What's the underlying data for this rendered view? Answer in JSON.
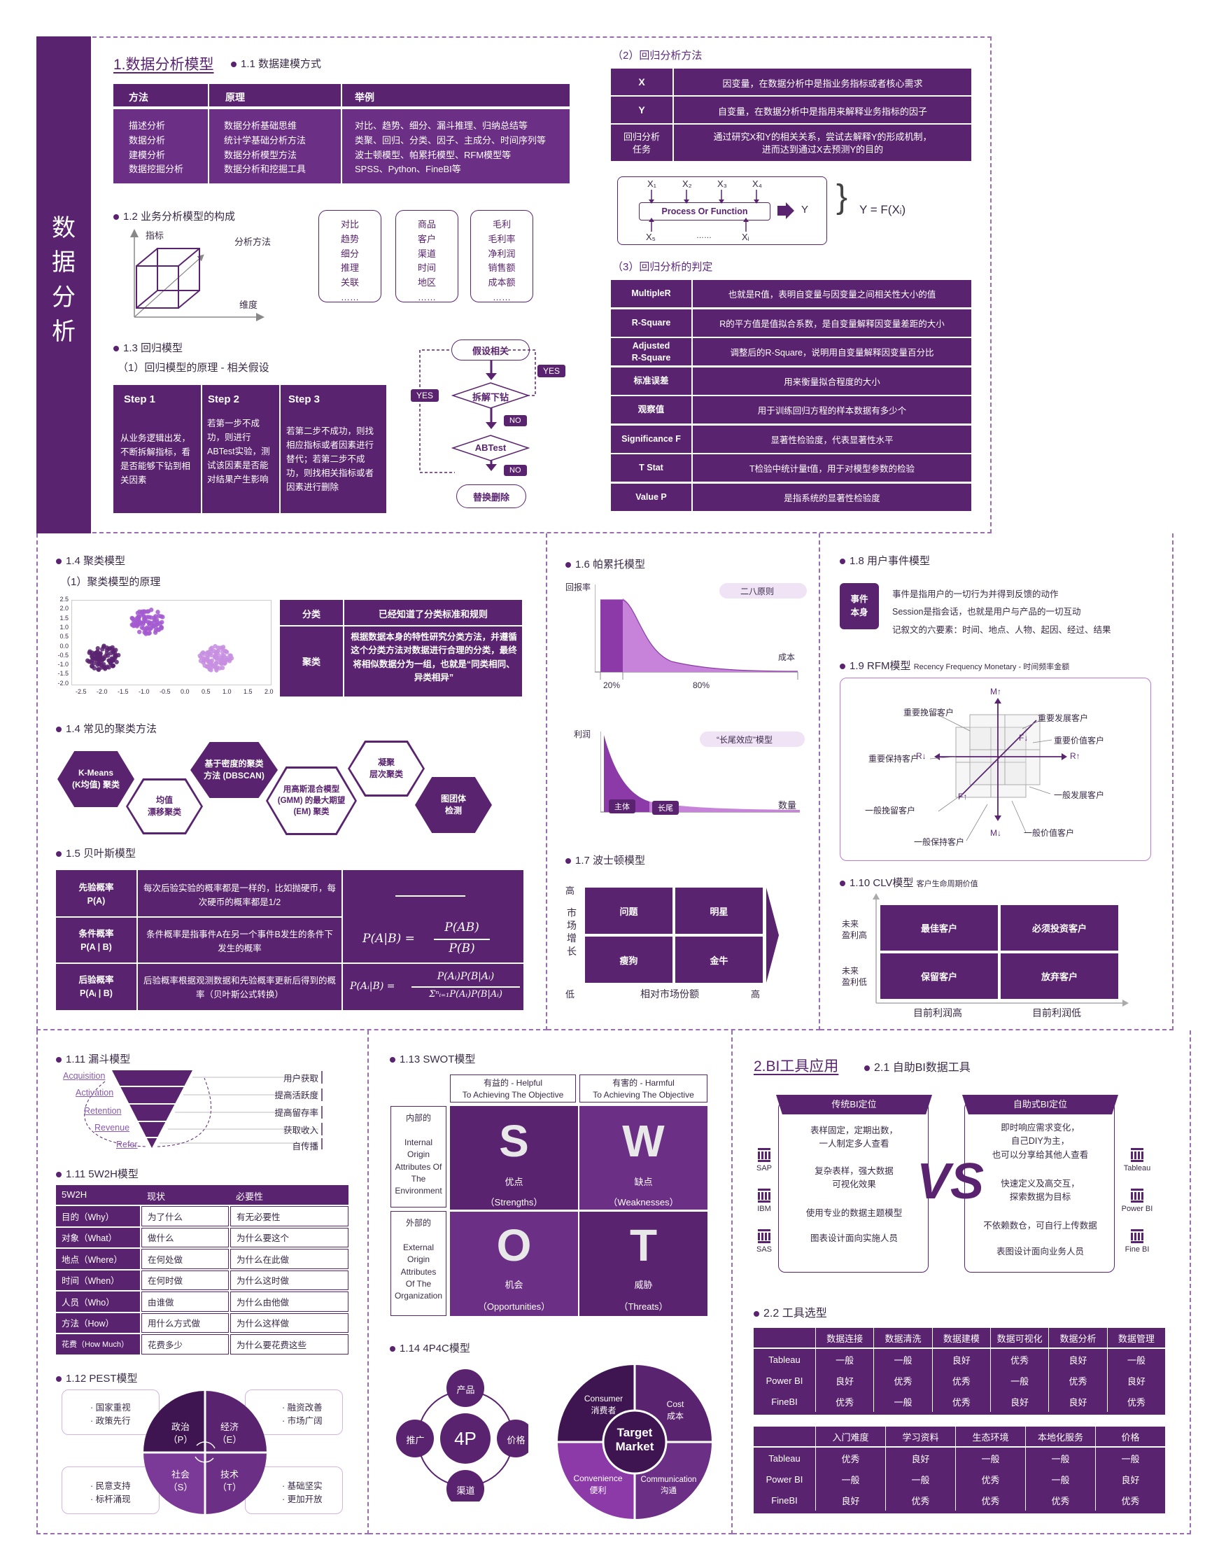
{
  "side_title": "数\n据\n分\n析",
  "s1": {
    "title": "1.数据分析模型",
    "sub": "1.1 数据建模方式",
    "table": {
      "headers": [
        "方法",
        "原理",
        "举例"
      ],
      "col1": [
        "描述分析",
        "数据分析",
        "建模分析",
        "数据挖掘分析"
      ],
      "col2": [
        "数据分析基础思维",
        "统计学基础分析方法",
        "数据分析模型方法",
        "数据分析和挖掘工具"
      ],
      "col3": [
        "对比、趋势、细分、漏斗推理、归纳总结等",
        "类聚、回归、分类、因子、主成分、时间序列等",
        "波士顿模型、帕累托模型、RFM模型等",
        "SPSS、Python、FineBI等"
      ]
    }
  },
  "s12": {
    "title": "1.2 业务分析模型的构成",
    "axis_y": "指标",
    "axis_x": "维度",
    "axis_z": "分析方法",
    "boxes": [
      [
        "对比",
        "趋势",
        "细分",
        "推理",
        "关联",
        "……"
      ],
      [
        "商品",
        "客户",
        "渠道",
        "时间",
        "地区",
        "……"
      ],
      [
        "毛利",
        "毛利率",
        "净利润",
        "销售额",
        "成本额",
        "……"
      ]
    ]
  },
  "s13": {
    "title": "1.3 回归模型",
    "sub": "（1）回归模型的原理 - 相关假设",
    "steps": [
      {
        "h": "Step 1",
        "b": "从业务逻辑出发，不断拆解指标，看是否能够下钻到相关因素"
      },
      {
        "h": "Step 2",
        "b": "若第一步不成功，则进行ABTest实验，测试该因素是否能对结果产生影响"
      },
      {
        "h": "Step 3",
        "b": "若第二步不成功，则找相应指标或者因素进行替代；若第二步不成功，则找相关指标或者因素进行删除"
      }
    ],
    "flow": {
      "n1": "假设相关",
      "n2": "拆解下钻",
      "n3": "ABTest",
      "n4": "替换删除",
      "yes": "YES",
      "no": "NO"
    }
  },
  "s2": {
    "title": "（2）回归分析方法",
    "rows": [
      {
        "k": "X",
        "v": "因变量，在数据分析中是指业务指标或者核心需求"
      },
      {
        "k": "Y",
        "v": "自变量，在数据分析中是指用来解释业务指标的因子"
      },
      {
        "k": "回归分析\n任务",
        "v": "通过研究X和Y的相关关系，尝试去解释Y的形成机制，\n进而达到通过X去预测Y的目的"
      }
    ],
    "diag": {
      "x1": "X₁",
      "x2": "X₂",
      "x3": "X₃",
      "x4": "X₄",
      "x5": "X₅",
      "xi": "Xᵢ",
      "dots": "……",
      "box": "Process Or Function",
      "y": "Y",
      "eq": "Y = F(Xᵢ)"
    }
  },
  "s3": {
    "title": "（3）回归分析的判定",
    "rows": [
      {
        "k": "MultipleR",
        "v": "也就是R值，表明自变量与因变量之间相关性大小的值"
      },
      {
        "k": "R-Square",
        "v": "R的平方值是值拟合系数，是自变量解释因变量差距的大小"
      },
      {
        "k": "Adjusted\nR-Square",
        "v": "调整后的R-Square，说明用自变量解释因变量百分比"
      },
      {
        "k": "标准误差",
        "v": "用来衡量拟合程度的大小"
      },
      {
        "k": "观察值",
        "v": "用于训练回归方程的样本数据有多少个"
      },
      {
        "k": "Significance F",
        "v": "显著性检验度，代表显著性水平"
      },
      {
        "k": "T Stat",
        "v": "T检验中统计量t值，用于对模型参数的检验"
      },
      {
        "k": "Value P",
        "v": "是指系统的显著性检验度"
      }
    ]
  },
  "s14": {
    "title": "1.4 聚类模型",
    "sub": "（1）聚类模型的原理",
    "yt": [
      "2.5",
      "2.0",
      "1.5",
      "1.0",
      "0.5",
      "0.0",
      "-0.5",
      "-1.0",
      "-1.5",
      "-2.0"
    ],
    "xt": [
      "-2.5",
      "-2.0",
      "-1.5",
      "-1.0",
      "-0.5",
      "0.0",
      "0.5",
      "1.0",
      "1.5",
      "2.0"
    ],
    "rows": [
      {
        "k": "分类",
        "v": "已经知道了分类标准和规则"
      },
      {
        "k": "聚类",
        "v": "根据数据本身的特性研究分类方法，并遵循这个分类方法对数据进行合理的分类，最终将相似数据分为一组，也就是“同类相同、异类相异”"
      }
    ],
    "methods_title": "1.4 常见的聚类方法",
    "methods": [
      "K-Means\n(K均值) 聚类",
      "均值\n漂移聚类",
      "基于密度的聚类\n方法 (DBSCAN)",
      "用高斯混合模型\n(GMM) 的最大期望\n(EM) 聚类",
      "凝聚\n层次聚类",
      "图团体\n检测"
    ]
  },
  "s15": {
    "title": "1.5 贝叶斯模型",
    "rows": [
      {
        "k": "先验概率\nP(A)",
        "v": "每次后验实验的概率都是一样的，比如抛硬币，每次硬币的概率都是1/2"
      },
      {
        "k": "条件概率\nP(A | B)",
        "v": "条件概率是指事件A在另一个事件B发生的条件下发生的概率"
      },
      {
        "k": "后验概率\nP(Aᵢ | B)",
        "v": "后验概率根据观测数据和先验概率更新后得到的概率（贝叶斯公式转换）"
      }
    ],
    "f1_lhs": "P(A|B) =",
    "f1_num": "P(AB)",
    "f1_den": "P(B)",
    "f2_lhs": "P(Aᵢ|B) =",
    "f2_num": "P(Aᵢ)P(B|Aᵢ)",
    "f2_den": "Σⁿᵢ₌₁P(Aᵢ)P(B|Aᵢ)"
  },
  "s16": {
    "title": "1.6 帕累托模型",
    "ylabel": "回报率",
    "xlabel": "成本",
    "tag": "二八原则",
    "p20": "20%",
    "p80": "80%",
    "ylabel2": "利润",
    "xlabel2": "数量",
    "tag2": "“长尾效应”模型",
    "head": "主体",
    "tail": "长尾"
  },
  "s17": {
    "title": "1.7 波士顿模型",
    "ylabel": "市\n场\n增\n长",
    "high": "高",
    "low": "低",
    "xlabel": "相对市场份额",
    "xhigh": "高",
    "cells": [
      "问题",
      "明星",
      "瘦狗",
      "金牛"
    ]
  },
  "s18": {
    "title": "1.8 用户事件模型",
    "badge": "事件\n本身",
    "lines": [
      "事件是指用户的一切行为并得到反馈的动作",
      "Session是指会话，也就是用户与产品的一切互动",
      "记叙文的六要素：时间、地点、人物、起因、经过、结果"
    ]
  },
  "s19": {
    "title": "1.9 RFM模型",
    "sub": "Recency Frequency Monetary - 时间频率金额",
    "labels": [
      "重要挽留客户",
      "重要发展客户",
      "重要保持客户",
      "重要价值客户",
      "一般挽留客户",
      "一般发展客户",
      "一般保持客户",
      "一般价值客户"
    ],
    "axes": {
      "mu": "M↑",
      "md": "M↓",
      "rl": "R↓",
      "rr": "R↑",
      "fu": "F↓",
      "fd": "F↑"
    }
  },
  "s110": {
    "title": "1.10 CLV模型",
    "sub": "客户生命周期价值",
    "yh": "未来\n盈利高",
    "yl": "未来\n盈利低",
    "cells": [
      "最佳客户",
      "必须投资客户",
      "保留客户",
      "放弃客户"
    ],
    "xl": "目前利润高",
    "xr": "目前利润低"
  },
  "s111": {
    "title": "1.11 漏斗模型",
    "left": [
      "Acquisition",
      "Activation",
      "Retention",
      "Revenue",
      "Refer"
    ],
    "right": [
      "用户获取",
      "提高活跃度",
      "提高留存率",
      "获取收入",
      "自传播"
    ]
  },
  "s5w": {
    "title": "1.11 5W2H模型",
    "headers": [
      "5W2H",
      "现状",
      "必要性"
    ],
    "rows": [
      [
        "目的（Why）",
        "为了什么",
        "有无必要性"
      ],
      [
        "对象（What）",
        "做什么",
        "为什么要这个"
      ],
      [
        "地点（Where）",
        "在何处做",
        "为什么在此做"
      ],
      [
        "时间（When）",
        "在何时做",
        "为什么这时做"
      ],
      [
        "人员（Who）",
        "由谁做",
        "为什么由他做"
      ],
      [
        "方法（How）",
        "用什么方式做",
        "为什么这样做"
      ],
      [
        "花费（How Much）",
        "花费多少",
        "为什么要花费这些"
      ]
    ]
  },
  "s112": {
    "title": "1.12 PEST模型",
    "q": [
      "政治\n（P）",
      "经济\n（E）",
      "社会\n（S）",
      "技术\n（T）"
    ],
    "tl": "· 国家重视\n· 政策先行",
    "tr": "· 融资改善\n· 市场广阔",
    "bl": "· 民意支持\n· 标杆涌现",
    "br": "· 基础坚实\n· 更加开放"
  },
  "s113": {
    "title": "1.13 SWOT模型",
    "h1": "有益的 - Helpful\nTo Achieving The Objective",
    "h2": "有害的 - Harmful\nTo Achieving The Objective",
    "r1": "内部的\n\nInternal\nOrigin\nAttributes Of\nThe\nEnvironment",
    "r2": "外部的\n\nExternal\nOrigin\nAttributes\nOf The\nOrganization",
    "cells": [
      {
        "l": "S",
        "c": "优点",
        "e": "（Strengths）"
      },
      {
        "l": "W",
        "c": "缺点",
        "e": "（Weaknesses）"
      },
      {
        "l": "O",
        "c": "机会",
        "e": "（Opportunities）"
      },
      {
        "l": "T",
        "c": "威胁",
        "e": "（Threats）"
      }
    ]
  },
  "s114": {
    "title": "1.14 4P4C模型",
    "center": "4P",
    "p": [
      "产品",
      "推广",
      "价格",
      "渠道"
    ],
    "target": "Target\nMarket",
    "c1": "Consumer\n消费者",
    "c2": "Cost\n成本",
    "c3": "Convenience\n便利",
    "c4": "Communication\n沟通"
  },
  "bi": {
    "title": "2.BI工具应用",
    "sub": "2.1 自助BI数据工具",
    "left_h": "传统BI定位",
    "left": [
      "表样固定，定期出数，\n一人制定多人查看",
      "复杂表样，强大数据\n可视化效果",
      "使用专业的数据主题模型",
      "图表设计面向实施人员"
    ],
    "right_h": "自助式BI定位",
    "right": [
      "即时响应需求变化，\n自己DIY为主，\n也可以分享给其他人查看",
      "快速定义及高交互，\n探索数据为目标",
      "不依赖数仓，可自行上传数据",
      "表图设计面向业务人员"
    ],
    "vs": "VS",
    "ltools": [
      "SAP",
      "IBM",
      "SAS"
    ],
    "rtools": [
      "Tableau",
      "Power BI",
      "Fine BI"
    ]
  },
  "s22": {
    "title": "2.2 工具选型",
    "h1": [
      "数据连接",
      "数据清洗",
      "数据建模",
      "数据可视化",
      "数据分析",
      "数据管理"
    ],
    "t1": [
      [
        "Tableau",
        "一般",
        "一般",
        "良好",
        "优秀",
        "良好",
        "一般"
      ],
      [
        "Power BI",
        "良好",
        "优秀",
        "优秀",
        "一般",
        "优秀",
        "良好"
      ],
      [
        "FineBI",
        "优秀",
        "一般",
        "优秀",
        "良好",
        "良好",
        "优秀"
      ]
    ],
    "h2": [
      "入门难度",
      "学习资料",
      "生态环境",
      "本地化服务",
      "价格"
    ],
    "t2": [
      [
        "Tableau",
        "优秀",
        "良好",
        "一般",
        "一般",
        "一般"
      ],
      [
        "Power BI",
        "一般",
        "一般",
        "优秀",
        "一般",
        "良好"
      ],
      [
        "FineBI",
        "良好",
        "优秀",
        "优秀",
        "优秀",
        "优秀"
      ]
    ]
  },
  "colors": {
    "primary": "#5a2370",
    "mid": "#6b2f86",
    "light": "#b56bd0",
    "pale": "#d9a6e8"
  }
}
